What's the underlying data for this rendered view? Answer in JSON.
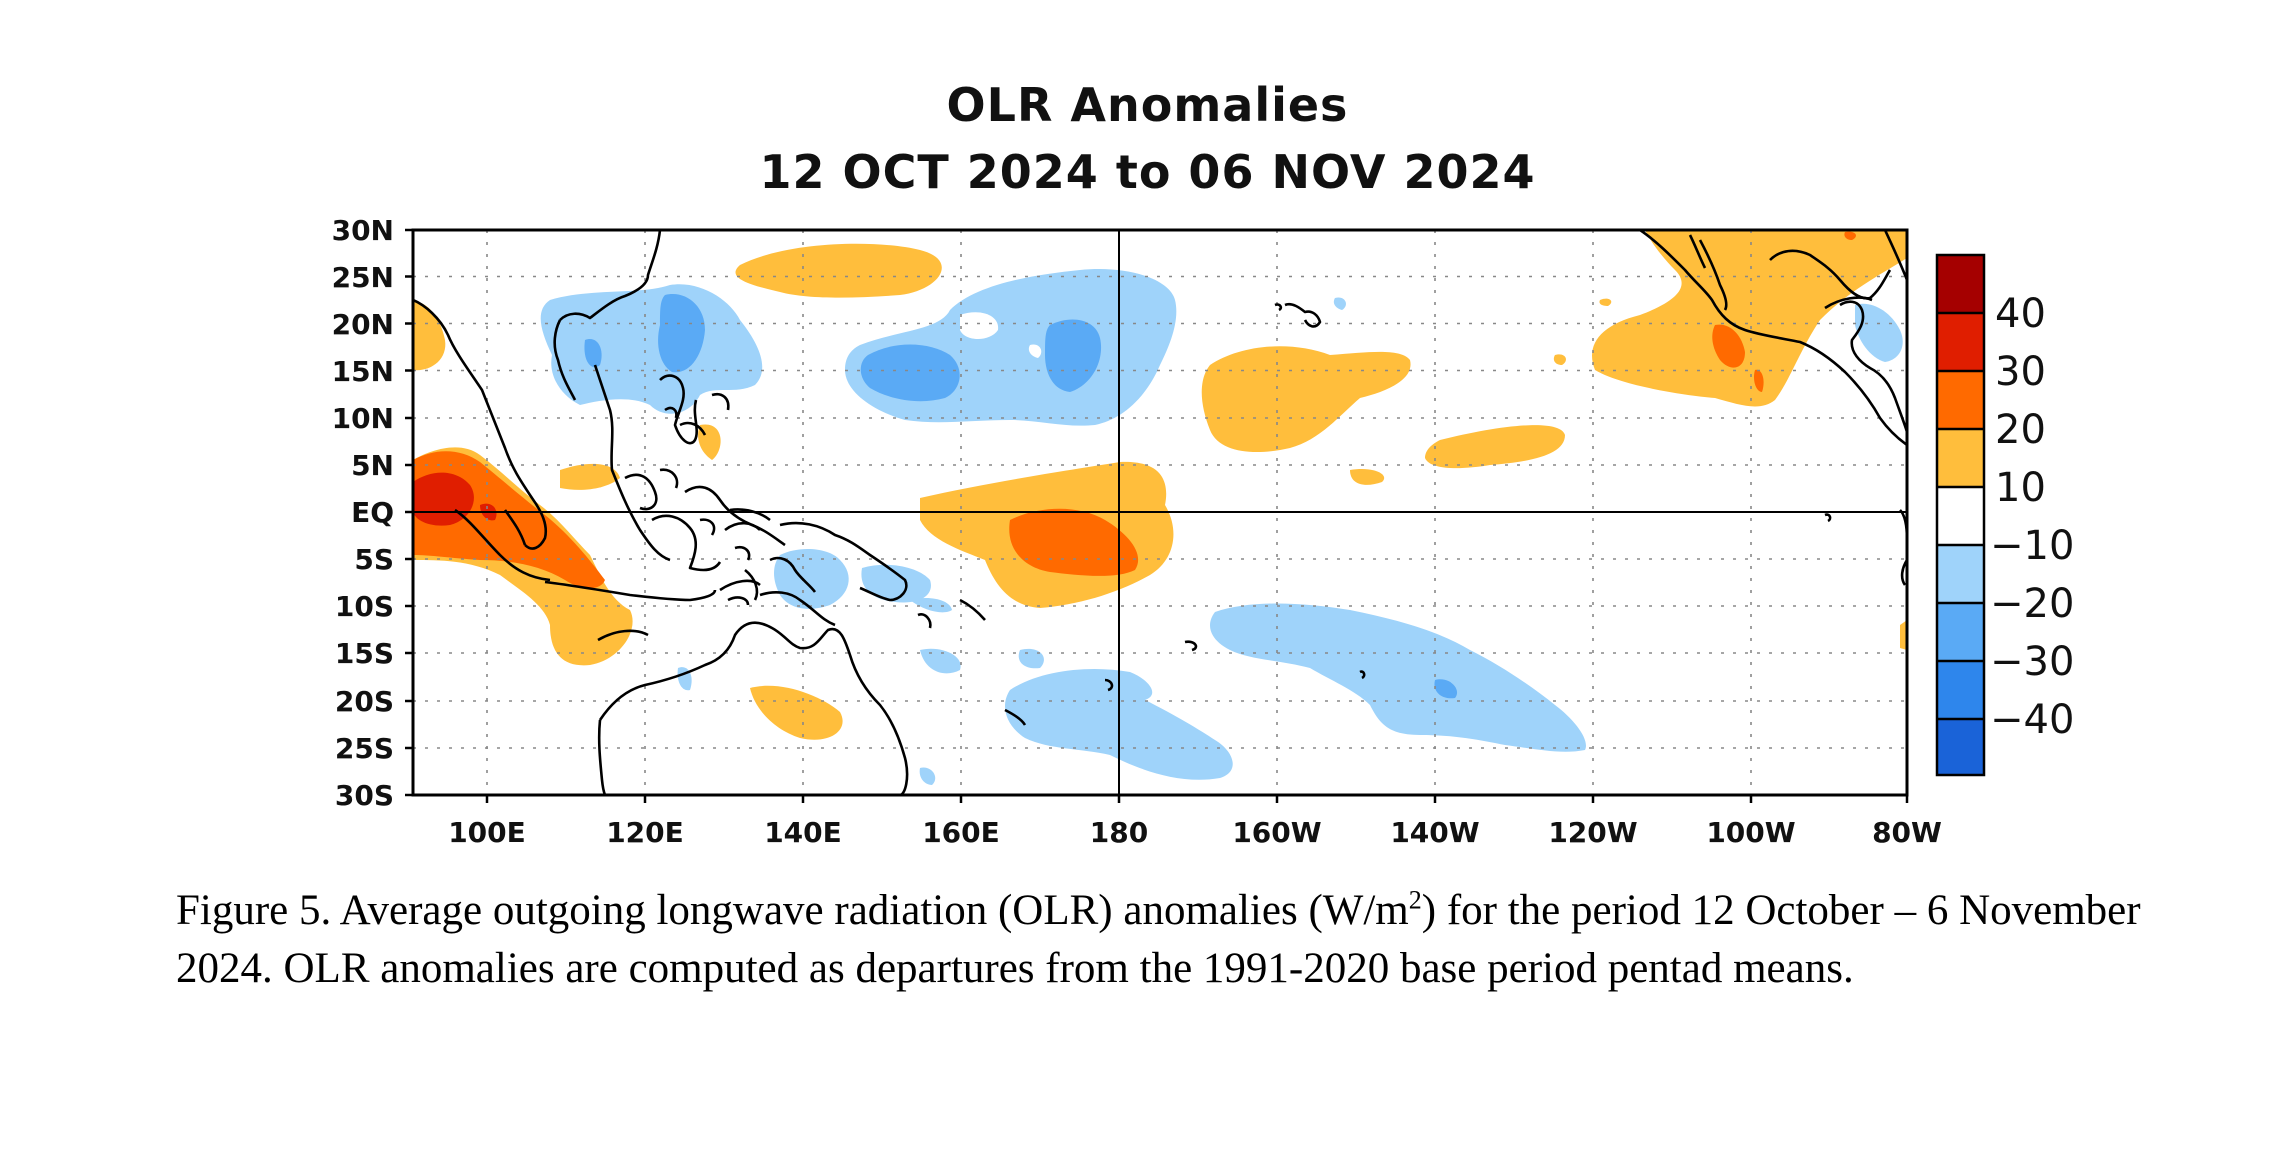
{
  "figure": {
    "title_line1": "OLR Anomalies",
    "title_line2": "12 OCT 2024 to 06 NOV 2024",
    "caption_part1": "Figure 5. Average outgoing longwave radiation (OLR) anomalies (W/m",
    "caption_sup": "2",
    "caption_part2": ") for the period 12 October  – 6 November 2024.  OLR anomalies are computed as departures from the 1991-2020 base period pentad means."
  },
  "map": {
    "lon_range": [
      "90E",
      "80W"
    ],
    "lat_range": [
      "30S",
      "30N"
    ],
    "lat_ticks": [
      "30N",
      "25N",
      "20N",
      "15N",
      "10N",
      "5N",
      "EQ",
      "5S",
      "10S",
      "15S",
      "20S",
      "25S",
      "30S"
    ],
    "lon_ticks": [
      "100E",
      "120E",
      "140E",
      "160E",
      "180",
      "160W",
      "140W",
      "120W",
      "100W",
      "80W"
    ],
    "reference_lines": [
      "EQ",
      "180"
    ],
    "grid": "dotted"
  },
  "colorbar": {
    "labels": [
      "40",
      "30",
      "20",
      "10",
      "−10",
      "−20",
      "−30",
      "−40"
    ],
    "colors": [
      "#a50000",
      "#e01e00",
      "#ff6a00",
      "#ffbe3c",
      "#ffffff",
      "#9fd3fa",
      "#5aaaf5",
      "#2e86ec",
      "#1a63d8"
    ]
  },
  "colors": {
    "positive_10_20": "#ffbe3c",
    "positive_20_30": "#ff6a00",
    "positive_30_40": "#e01e00",
    "negative_10_20": "#9fd3fa",
    "negative_20_30": "#5aaaf5",
    "coastline": "#000000"
  }
}
